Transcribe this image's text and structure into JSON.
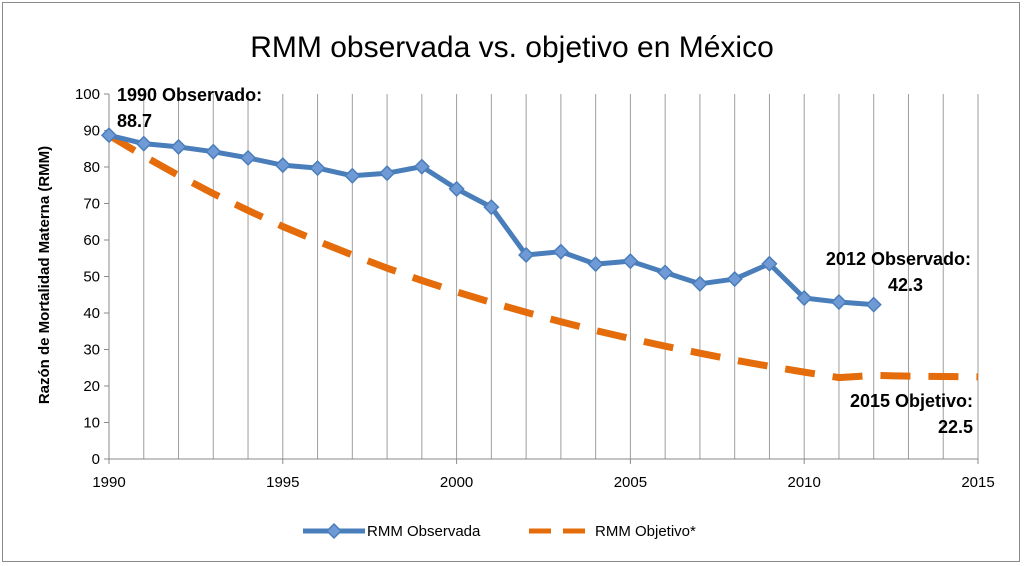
{
  "chart_data": {
    "type": "line",
    "title": "RMM observada vs. objetivo en México",
    "xlabel": "",
    "ylabel": "Razón de Mortalidad Materna (RMM)",
    "xlim": [
      1990,
      2015
    ],
    "ylim": [
      0,
      100
    ],
    "x_ticks": [
      "1990",
      "1995",
      "2000",
      "2005",
      "2010",
      "2015"
    ],
    "y_ticks": [
      "0",
      "10",
      "20",
      "30",
      "40",
      "50",
      "60",
      "70",
      "80",
      "90",
      "100"
    ],
    "grid": "vertical",
    "legend_position": "bottom",
    "series": [
      {
        "name": "RMM Observada",
        "color": "#4a7ebb",
        "style": "solid-with-diamond-markers",
        "x": [
          1990,
          1991,
          1992,
          1993,
          1994,
          1995,
          1996,
          1997,
          1998,
          1999,
          2000,
          2001,
          2002,
          2003,
          2004,
          2005,
          2006,
          2007,
          2008,
          2009,
          2010,
          2011,
          2012
        ],
        "values": [
          88.7,
          86.4,
          85.5,
          84.2,
          82.5,
          80.5,
          79.7,
          77.6,
          78.3,
          80.1,
          74.0,
          69.0,
          55.9,
          56.8,
          53.4,
          54.2,
          51.1,
          48.0,
          49.3,
          53.5,
          44.1,
          43.0,
          42.3
        ]
      },
      {
        "name": "RMM Objetivo*",
        "color": "#e46c0a",
        "style": "dashed",
        "x": [
          1990,
          1991,
          1992,
          1993,
          1994,
          1995,
          1996,
          1997,
          1998,
          1999,
          2000,
          2001,
          2002,
          2003,
          2004,
          2005,
          2006,
          2007,
          2008,
          2009,
          2010,
          2011,
          2012,
          2013,
          2014,
          2015
        ],
        "values": [
          88.7,
          83.0,
          77.7,
          72.7,
          68.1,
          63.7,
          59.7,
          55.9,
          52.3,
          48.9,
          45.8,
          42.9,
          40.2,
          37.6,
          35.2,
          33.0,
          30.9,
          29.0,
          27.1,
          25.4,
          23.8,
          22.3,
          22.9,
          22.7,
          22.6,
          22.5
        ]
      }
    ],
    "annotations": {
      "obs_1990": [
        "1990 Observado:",
        "88.7"
      ],
      "obs_2012": [
        "2012 Observado:",
        "42.3"
      ],
      "obj_2015": [
        "2015 Objetivo:",
        "22.5"
      ]
    }
  }
}
